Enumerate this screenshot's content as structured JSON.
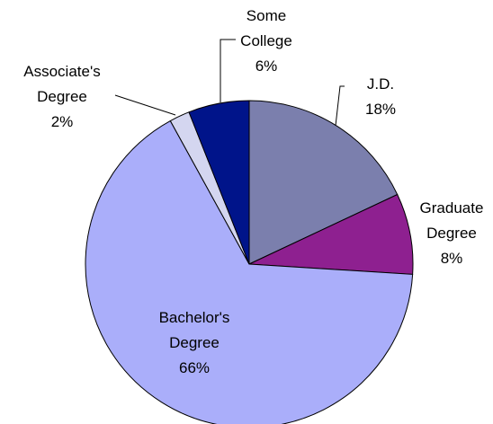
{
  "chart_data": {
    "type": "pie",
    "categories": [
      "J.D.",
      "Graduate Degree",
      "Bachelor's Degree",
      "Associate's Degree",
      "Some College"
    ],
    "values": [
      18,
      8,
      66,
      2,
      6
    ],
    "value_labels": [
      "18%",
      "8%",
      "66%",
      "2%",
      "6%"
    ],
    "colors": [
      "#7b7fad",
      "#8e2090",
      "#aaaefa",
      "#d4d6f0",
      "#00148a"
    ]
  }
}
